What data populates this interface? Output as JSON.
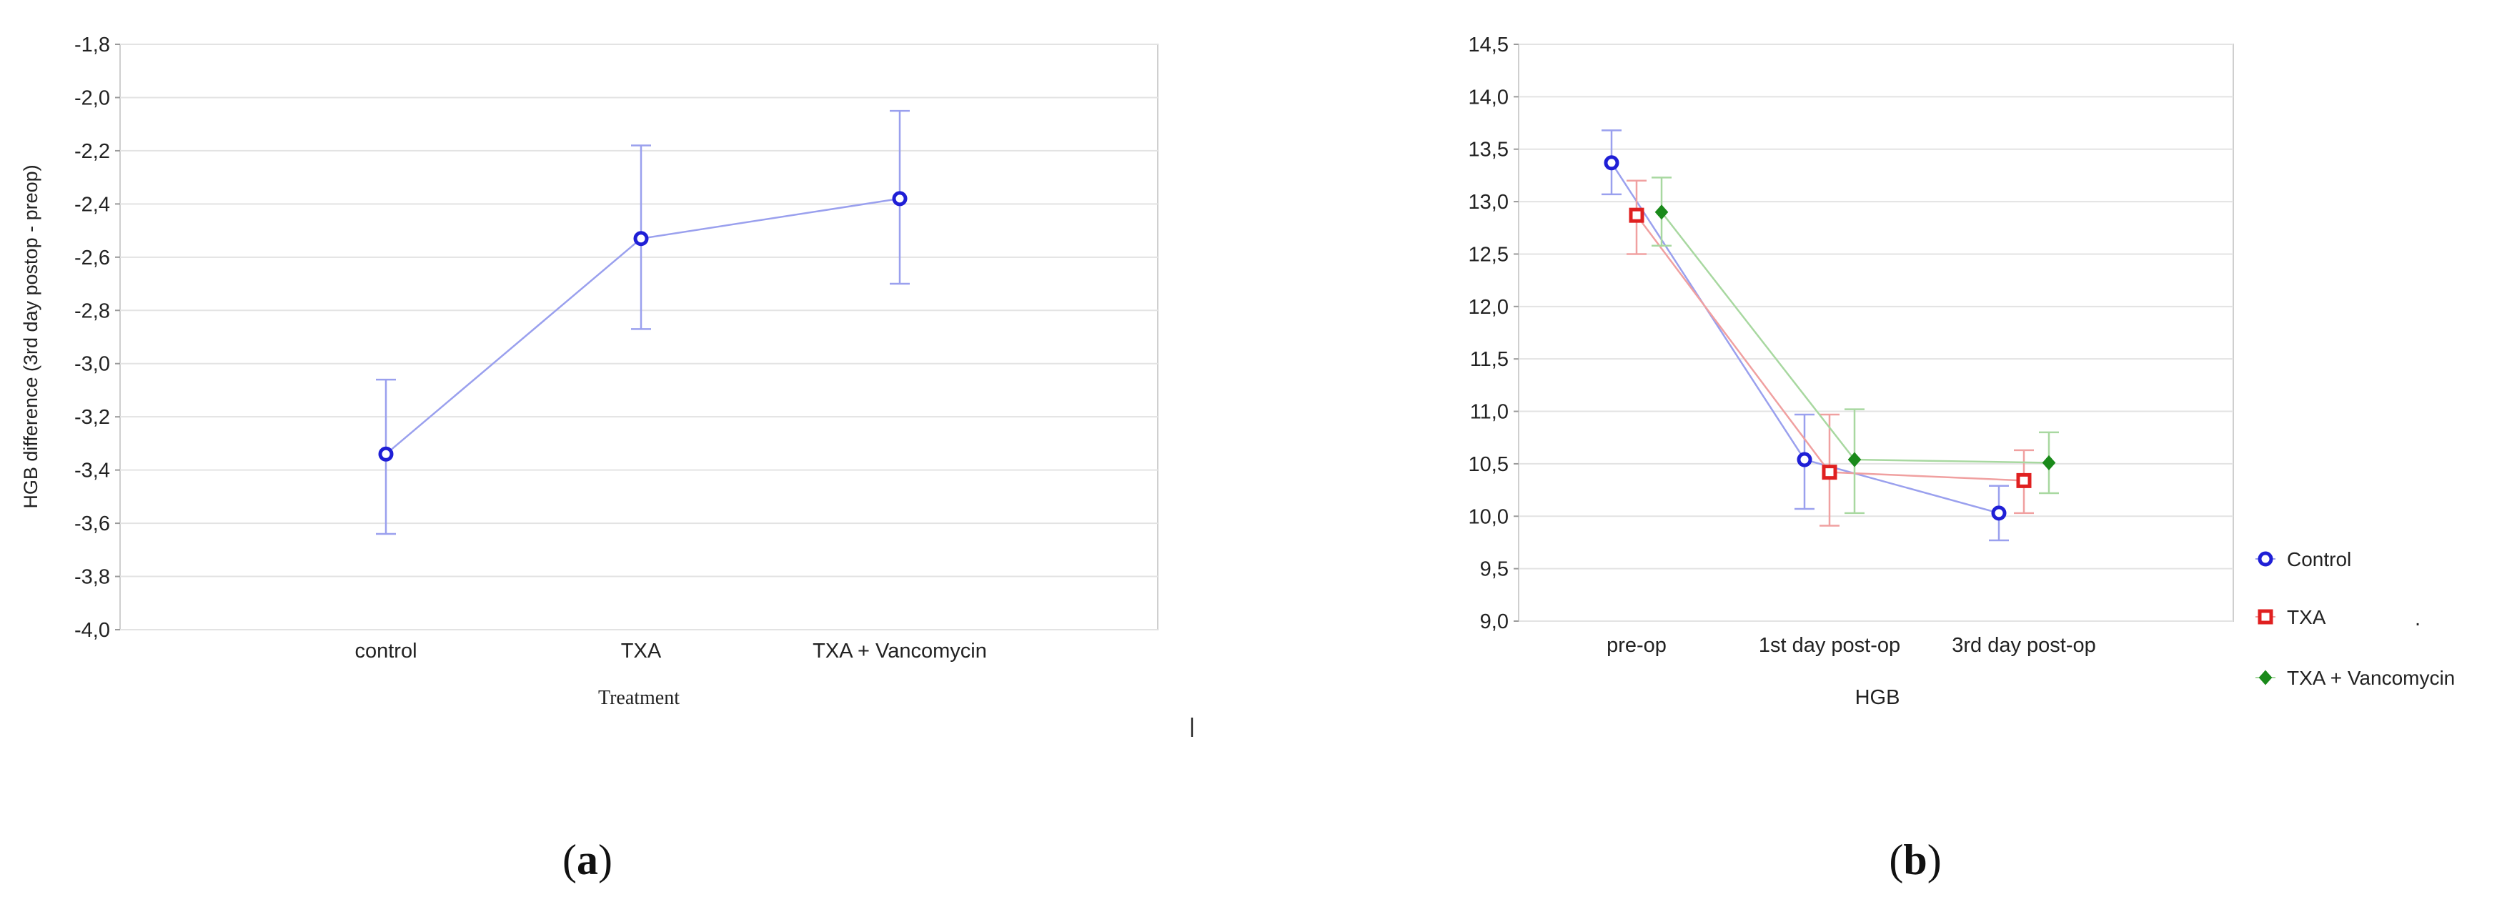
{
  "chart_data": [
    {
      "type": "line",
      "panel_label": {
        "open": "(",
        "letter": "a",
        "close": ")"
      },
      "xlabel": "Treatment",
      "ylabel": "HGB difference (3rd day postop - preop)",
      "ylim": [
        -4.0,
        -1.8
      ],
      "yticks": [
        "-1,8",
        "-2,0",
        "-2,2",
        "-2,4",
        "-2,6",
        "-2,8",
        "-3,0",
        "-3,2",
        "-3,4",
        "-3,6",
        "-3,8",
        "-4,0"
      ],
      "ytick_values": [
        -1.8,
        -2.0,
        -2.2,
        -2.4,
        -2.6,
        -2.8,
        -3.0,
        -3.2,
        -3.4,
        -3.6,
        -3.8,
        -4.0
      ],
      "categories": [
        "control",
        "TXA",
        "TXA + Vancomycin"
      ],
      "grid": true,
      "series": [
        {
          "values": [
            -3.34,
            -2.53,
            -2.38
          ],
          "err_low": [
            -3.64,
            -2.87,
            -2.7
          ],
          "err_high": [
            -3.06,
            -2.18,
            -2.05
          ],
          "color": "#1f1fd6",
          "line_color": "#9aa0ee",
          "marker": "circle"
        }
      ],
      "stray_mark": "|"
    },
    {
      "type": "line",
      "panel_label": {
        "open": "(",
        "letter": "b",
        "close": ")"
      },
      "xlabel": "HGB",
      "ylabel": "",
      "ylim": [
        9.0,
        14.5
      ],
      "yticks": [
        "14,5",
        "14,0",
        "13,5",
        "13,0",
        "12,5",
        "12,0",
        "11,5",
        "11,0",
        "10,5",
        "10,0",
        "9,5",
        "9,0"
      ],
      "ytick_values": [
        14.5,
        14.0,
        13.5,
        13.0,
        12.5,
        12.0,
        11.5,
        11.0,
        10.5,
        10.0,
        9.5,
        9.0
      ],
      "categories": [
        "pre-op",
        "1st day post-op",
        "3rd day post-op"
      ],
      "grid": true,
      "legend_position": "right",
      "series": [
        {
          "name": "Control",
          "values": [
            13.37,
            10.54,
            10.03
          ],
          "err_low": [
            13.07,
            10.07,
            9.77
          ],
          "err_high": [
            13.68,
            10.97,
            10.29
          ],
          "color": "#1f1fd6",
          "line_color": "#9aa0ee",
          "marker": "circle"
        },
        {
          "name": "TXA",
          "values": [
            12.87,
            10.42,
            10.34
          ],
          "err_low": [
            12.5,
            9.91,
            10.03
          ],
          "err_high": [
            13.2,
            10.97,
            10.63
          ],
          "color": "#e02020",
          "line_color": "#f0a0a0",
          "marker": "square"
        },
        {
          "name": "TXA + Vancomycin",
          "values": [
            12.9,
            10.54,
            10.51
          ],
          "err_low": [
            12.58,
            10.03,
            10.22
          ],
          "err_high": [
            13.23,
            11.02,
            10.8
          ],
          "color": "#1a8a1a",
          "line_color": "#a8d8a0",
          "marker": "diamond"
        }
      ],
      "stray_mark": "."
    }
  ]
}
